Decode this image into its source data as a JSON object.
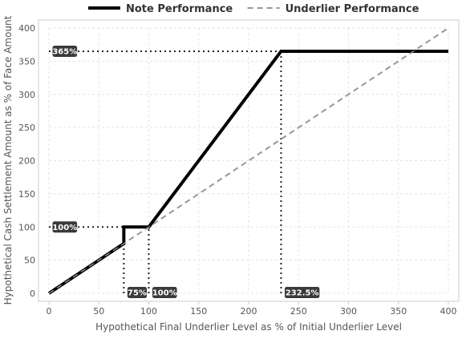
{
  "chart_data": {
    "type": "line",
    "title": "",
    "xlabel": "Hypothetical Final Underlier Level as % of Initial Underlier Level",
    "ylabel": "Hypothetical Cash Settlement Amount as % of Face Amount",
    "xlim": [
      0,
      400
    ],
    "ylim": [
      0,
      400
    ],
    "x_ticks": [
      0,
      50,
      100,
      150,
      200,
      250,
      300,
      350,
      400
    ],
    "y_ticks": [
      0,
      50,
      100,
      150,
      200,
      250,
      300,
      350,
      400
    ],
    "grid": true,
    "legend_position": "top-center",
    "series": [
      {
        "name": "Note Performance",
        "style": "solid",
        "color": "#000000",
        "points": [
          [
            0,
            0
          ],
          [
            75,
            75
          ],
          [
            75,
            100
          ],
          [
            100,
            100
          ],
          [
            232.5,
            365
          ],
          [
            400,
            365
          ]
        ]
      },
      {
        "name": "Underlier Performance",
        "style": "dashed",
        "color": "#999999",
        "points": [
          [
            0,
            0
          ],
          [
            400,
            400
          ]
        ]
      }
    ],
    "annotations": [
      {
        "label": "365%",
        "axis": "y",
        "value": 365,
        "to_x": 232.5
      },
      {
        "label": "100%",
        "axis": "y",
        "value": 100,
        "to_x": 75
      },
      {
        "label": "75%",
        "axis": "x",
        "value": 75,
        "to_y": 100
      },
      {
        "label": "100%",
        "axis": "x",
        "value": 100,
        "to_y": 100
      },
      {
        "label": "232.5%",
        "axis": "x",
        "value": 232.5,
        "to_y": 365
      }
    ]
  }
}
